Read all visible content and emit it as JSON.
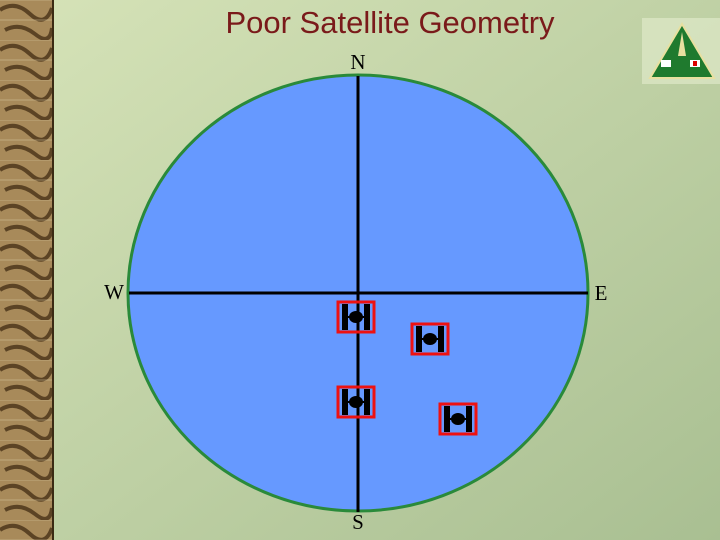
{
  "title": "Poor Satellite Geometry",
  "compass": {
    "north": "N",
    "south": "S",
    "west": "W",
    "east": "E"
  }
}
